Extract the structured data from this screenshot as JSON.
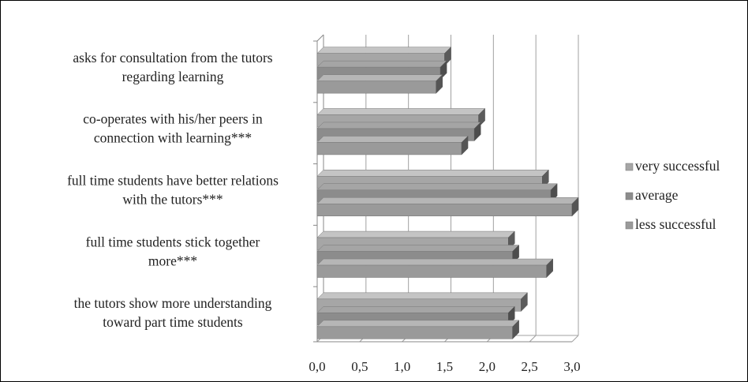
{
  "chart_data": {
    "type": "bar",
    "orientation": "horizontal",
    "style": "3d",
    "categories": [
      [
        "asks for consultation from the tutors",
        "regarding learning"
      ],
      [
        "co-operates with his/her peers in",
        "connection with learning***"
      ],
      [
        "full time students have better relations",
        "with the tutors***"
      ],
      [
        "full time students stick together",
        "more***"
      ],
      [
        "the tutors show more understanding",
        "toward part time students"
      ]
    ],
    "series": [
      {
        "name": "very successful",
        "color": "#a6a6a6",
        "values": [
          1.5,
          1.9,
          2.65,
          2.25,
          2.4
        ]
      },
      {
        "name": "average",
        "color": "#8c8c8c",
        "values": [
          1.45,
          1.85,
          2.75,
          2.3,
          2.25
        ]
      },
      {
        "name": "less successful",
        "color": "#9a9a9a",
        "values": [
          1.4,
          1.7,
          3.0,
          2.7,
          2.3
        ]
      }
    ],
    "xlim": [
      0,
      3.0
    ],
    "x_ticks": [
      "0,0",
      "0,5",
      "1,0",
      "1,5",
      "2,0",
      "2,5",
      "3,0"
    ],
    "grid": true,
    "legend_position": "right"
  }
}
